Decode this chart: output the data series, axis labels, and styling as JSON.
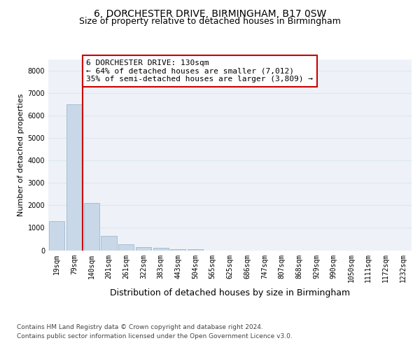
{
  "title1": "6, DORCHESTER DRIVE, BIRMINGHAM, B17 0SW",
  "title2": "Size of property relative to detached houses in Birmingham",
  "xlabel": "Distribution of detached houses by size in Birmingham",
  "ylabel": "Number of detached properties",
  "footnote1": "Contains HM Land Registry data © Crown copyright and database right 2024.",
  "footnote2": "Contains public sector information licensed under the Open Government Licence v3.0.",
  "bin_labels": [
    "19sqm",
    "79sqm",
    "140sqm",
    "201sqm",
    "261sqm",
    "322sqm",
    "383sqm",
    "443sqm",
    "504sqm",
    "565sqm",
    "625sqm",
    "686sqm",
    "747sqm",
    "807sqm",
    "868sqm",
    "929sqm",
    "990sqm",
    "1050sqm",
    "1111sqm",
    "1172sqm",
    "1232sqm"
  ],
  "bar_values": [
    1300,
    6500,
    2100,
    650,
    280,
    150,
    100,
    60,
    60,
    0,
    0,
    0,
    0,
    0,
    0,
    0,
    0,
    0,
    0,
    0,
    0
  ],
  "bar_color": "#c8d8e8",
  "bar_edge_color": "#a0b8cc",
  "grid_color": "#dde6f0",
  "background_color": "#eef2f8",
  "vline_color": "#cc0000",
  "annotation_line1": "6 DORCHESTER DRIVE: 130sqm",
  "annotation_line2": "← 64% of detached houses are smaller (7,012)",
  "annotation_line3": "35% of semi-detached houses are larger (3,809) →",
  "annotation_box_color": "#ffffff",
  "annotation_box_edge_color": "#cc0000",
  "ylim": [
    0,
    8500
  ],
  "yticks": [
    0,
    1000,
    2000,
    3000,
    4000,
    5000,
    6000,
    7000,
    8000
  ],
  "title1_fontsize": 10,
  "title2_fontsize": 9,
  "xlabel_fontsize": 9,
  "ylabel_fontsize": 8,
  "tick_fontsize": 7,
  "annotation_fontsize": 8,
  "footnote_fontsize": 6.5
}
